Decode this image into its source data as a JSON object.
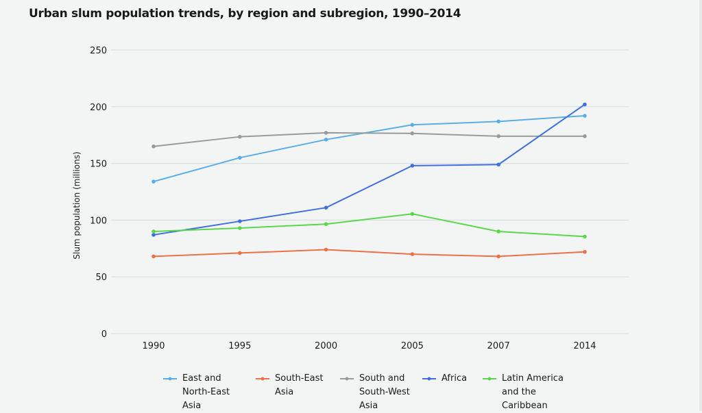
{
  "chart_data": {
    "type": "line",
    "title": "Urban slum population trends, by region and subregion, 1990–2014",
    "xlabel": "",
    "ylabel": "Slum population (millions)",
    "ylim": [
      0,
      250
    ],
    "yticks": [
      "0",
      "50",
      "100",
      "150",
      "200",
      "250"
    ],
    "grid": true,
    "legend_position": "bottom",
    "categories": [
      "1990",
      "1995",
      "2000",
      "2005",
      "2007",
      "2014"
    ],
    "series": [
      {
        "name": "East and\nNorth-East\nAsia",
        "color": "#5aaee8",
        "values": [
          134,
          155,
          171,
          184,
          187,
          192
        ]
      },
      {
        "name": "South-East\nAsia",
        "color": "#ee7044",
        "values": [
          68,
          71,
          74,
          70,
          68,
          72
        ]
      },
      {
        "name": "South and\nSouth-West\nAsia",
        "color": "#979c99",
        "values": [
          165,
          173.5,
          177,
          176.5,
          174,
          174
        ]
      },
      {
        "name": "Africa",
        "color": "#3f6fe0",
        "values": [
          87,
          99,
          111,
          148,
          149,
          202
        ]
      },
      {
        "name": "Latin America\nand the\nCaribbean",
        "color": "#5ad84a",
        "values": [
          90,
          93,
          96.5,
          105.5,
          90,
          85.5
        ]
      }
    ]
  }
}
